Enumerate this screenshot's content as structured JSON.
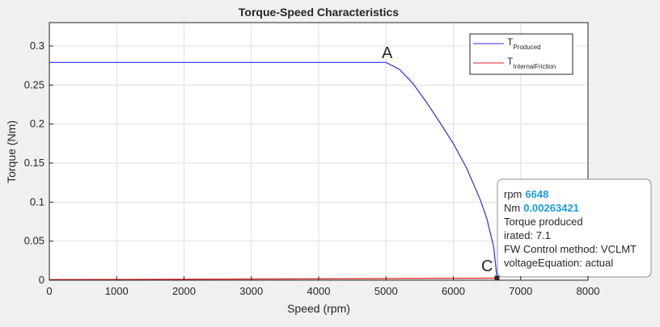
{
  "chart_data": {
    "type": "line",
    "title": "Torque-Speed Characteristics",
    "x_label": "Speed (rpm)",
    "y_label": "Torque (Nm)",
    "xlim": [
      0,
      8000
    ],
    "ylim": [
      0,
      0.33
    ],
    "xticks": [
      0,
      1000,
      2000,
      3000,
      4000,
      5000,
      6000,
      7000,
      8000
    ],
    "yticks": [
      0,
      0.05,
      0.1,
      0.15,
      0.2,
      0.25,
      0.3
    ],
    "grid": true,
    "legend_position": "upper right",
    "series": [
      {
        "name": "T",
        "subscript": "Produced",
        "color": "#2b2bf0",
        "x": [
          0,
          5000,
          5200,
          5400,
          5600,
          5800,
          6000,
          6200,
          6400,
          6500,
          6600,
          6648
        ],
        "values": [
          0.279,
          0.279,
          0.27,
          0.252,
          0.228,
          0.202,
          0.175,
          0.143,
          0.103,
          0.078,
          0.042,
          0.00263421
        ]
      },
      {
        "name": "T",
        "subscript": "InternalFriction",
        "color": "#e02020",
        "x": [
          0,
          2000,
          4000,
          6648
        ],
        "values": [
          0.0008,
          0.0012,
          0.0017,
          0.0026
        ]
      }
    ],
    "annotations": [
      "A",
      "C"
    ],
    "datatip": {
      "x_label": "rpm",
      "x": 6648,
      "y_label": "Nm",
      "y": 0.00263421,
      "lines": [
        "Torque produced",
        "irated: 7.1",
        "FW Control method: VCLMT",
        "voltageEquation: actual"
      ]
    }
  }
}
